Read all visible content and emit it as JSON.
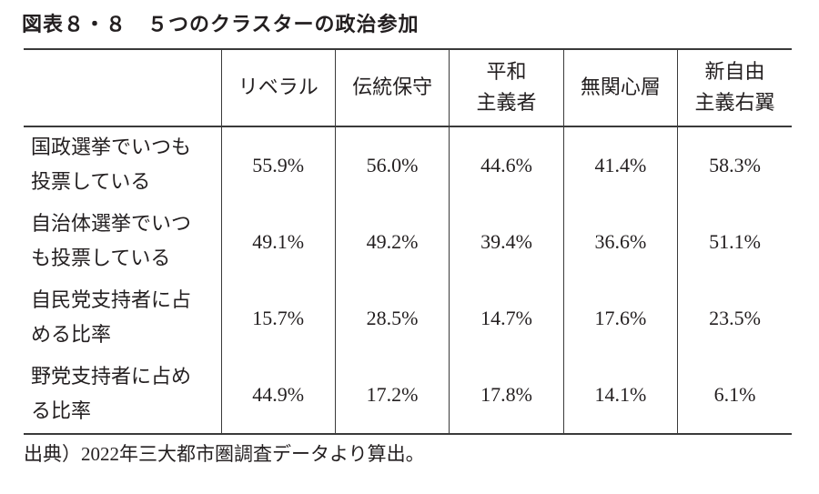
{
  "title": "図表８・８　５つのクラスターの政治参加",
  "table": {
    "columns": [
      {
        "lines": [
          "リベラル"
        ]
      },
      {
        "lines": [
          "伝統保守"
        ]
      },
      {
        "lines": [
          "平和",
          "主義者"
        ]
      },
      {
        "lines": [
          "無関心層"
        ]
      },
      {
        "lines": [
          "新自由",
          "主義右翼"
        ]
      }
    ],
    "rows": [
      {
        "label_lines": [
          "国政選挙でいつも",
          "投票している"
        ],
        "values": [
          "55.9%",
          "56.0%",
          "44.6%",
          "41.4%",
          "58.3%"
        ]
      },
      {
        "label_lines": [
          "自治体選挙でいつ",
          "も投票している"
        ],
        "values": [
          "49.1%",
          "49.2%",
          "39.4%",
          "36.6%",
          "51.1%"
        ]
      },
      {
        "label_lines": [
          "自民党支持者に占",
          "める比率"
        ],
        "values": [
          "15.7%",
          "28.5%",
          "14.7%",
          "17.6%",
          "23.5%"
        ]
      },
      {
        "label_lines": [
          "野党支持者に占め",
          "る比率"
        ],
        "values": [
          "44.9%",
          "17.2%",
          "17.8%",
          "14.1%",
          "6.1%"
        ]
      }
    ]
  },
  "footnote": "出典）2022年三大都市圏調査データより算出。",
  "colors": {
    "text": "#231f20",
    "rule": "#3a3a3a",
    "background": "#ffffff"
  }
}
